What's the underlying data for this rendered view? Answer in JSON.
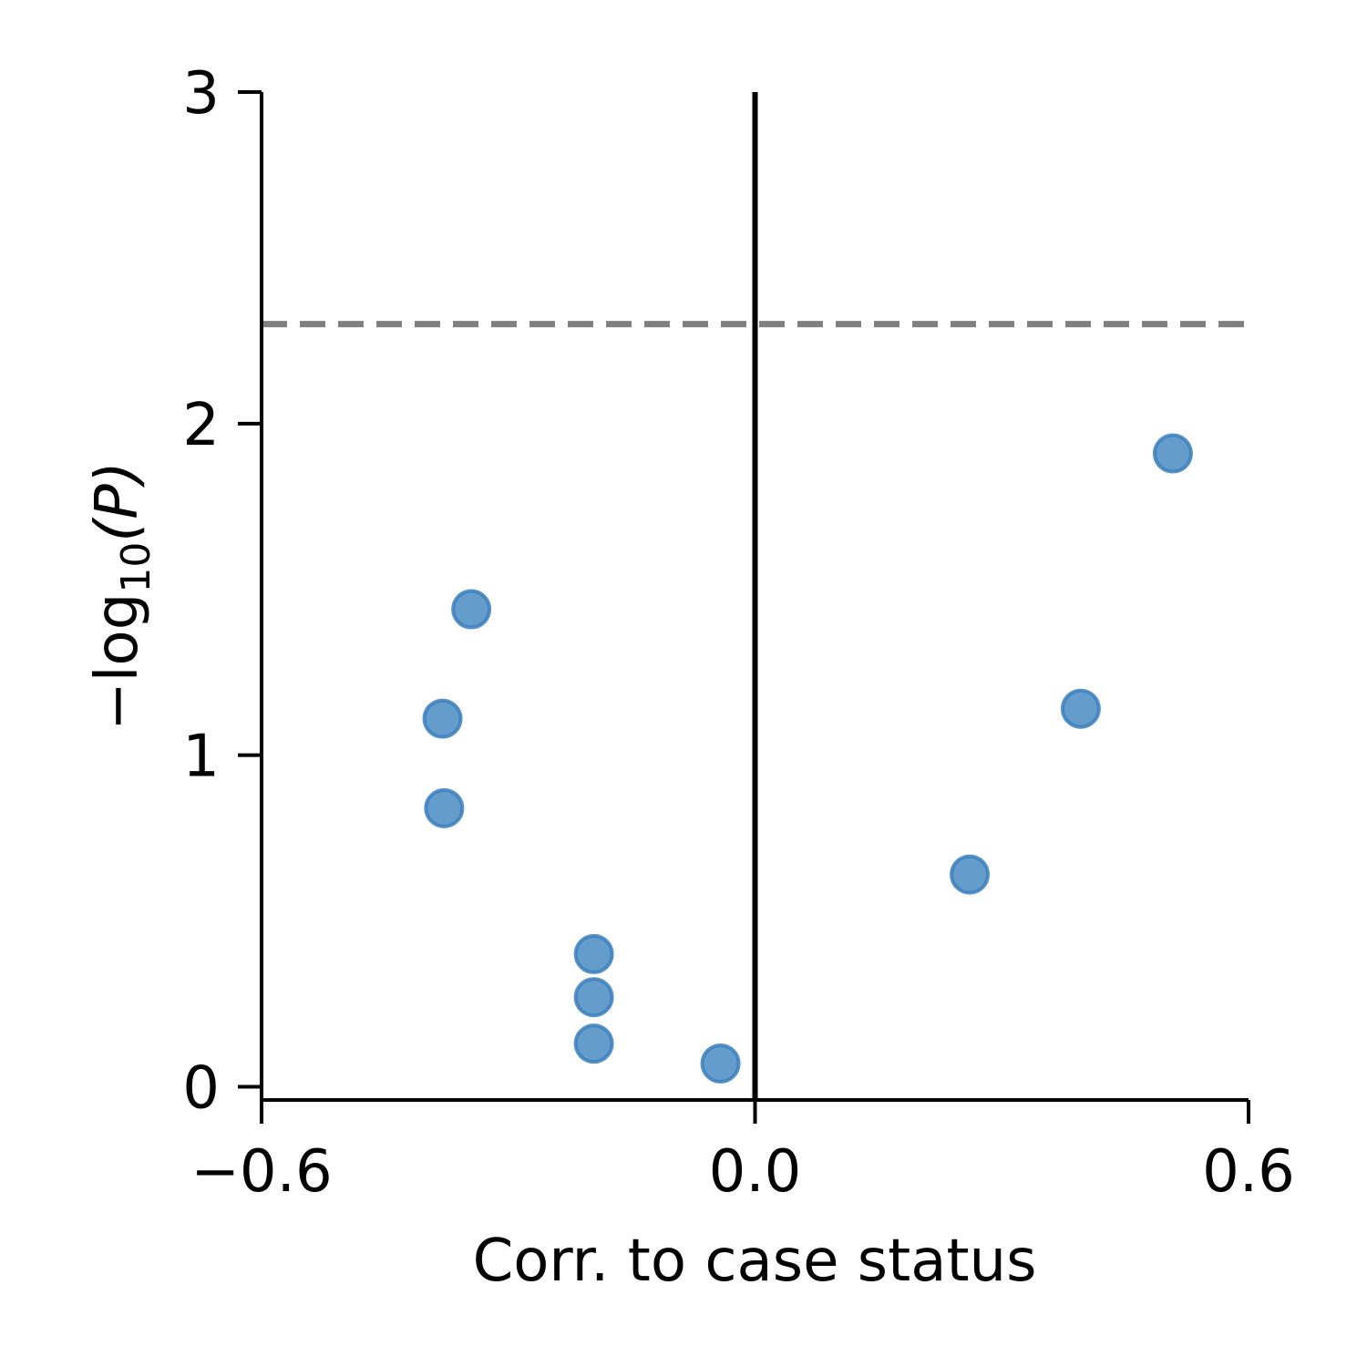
{
  "chart_data": {
    "type": "scatter",
    "title": "",
    "xlabel": "Corr. to case status",
    "ylabel": {
      "prefix": "−log",
      "subscript": "10",
      "suffix": "(P)"
    },
    "xlim": [
      -0.6,
      0.6
    ],
    "ylim": [
      -0.04,
      3.0
    ],
    "x_ticks": [
      {
        "value": -0.6,
        "label": "−0.6"
      },
      {
        "value": 0.0,
        "label": "0.0"
      },
      {
        "value": 0.6,
        "label": "0.6"
      }
    ],
    "y_ticks": [
      {
        "value": 0,
        "label": "0"
      },
      {
        "value": 1,
        "label": "1"
      },
      {
        "value": 2,
        "label": "2"
      },
      {
        "value": 3,
        "label": "3"
      }
    ],
    "grid": false,
    "reference_lines": {
      "vertical_x": 0.0,
      "horizontal_dashed_y": 2.3
    },
    "colors": {
      "points": "#4f8fc4",
      "point_edge": "#3b7fbd",
      "threshold": "#808080",
      "zero_line": "#000000"
    },
    "points": [
      {
        "x": -0.345,
        "y": 1.44
      },
      {
        "x": -0.38,
        "y": 1.11
      },
      {
        "x": -0.378,
        "y": 0.84
      },
      {
        "x": -0.196,
        "y": 0.4
      },
      {
        "x": -0.196,
        "y": 0.27
      },
      {
        "x": -0.196,
        "y": 0.13
      },
      {
        "x": -0.042,
        "y": 0.07
      },
      {
        "x": 0.261,
        "y": 0.64
      },
      {
        "x": 0.396,
        "y": 1.14
      },
      {
        "x": 0.508,
        "y": 1.91
      }
    ]
  }
}
